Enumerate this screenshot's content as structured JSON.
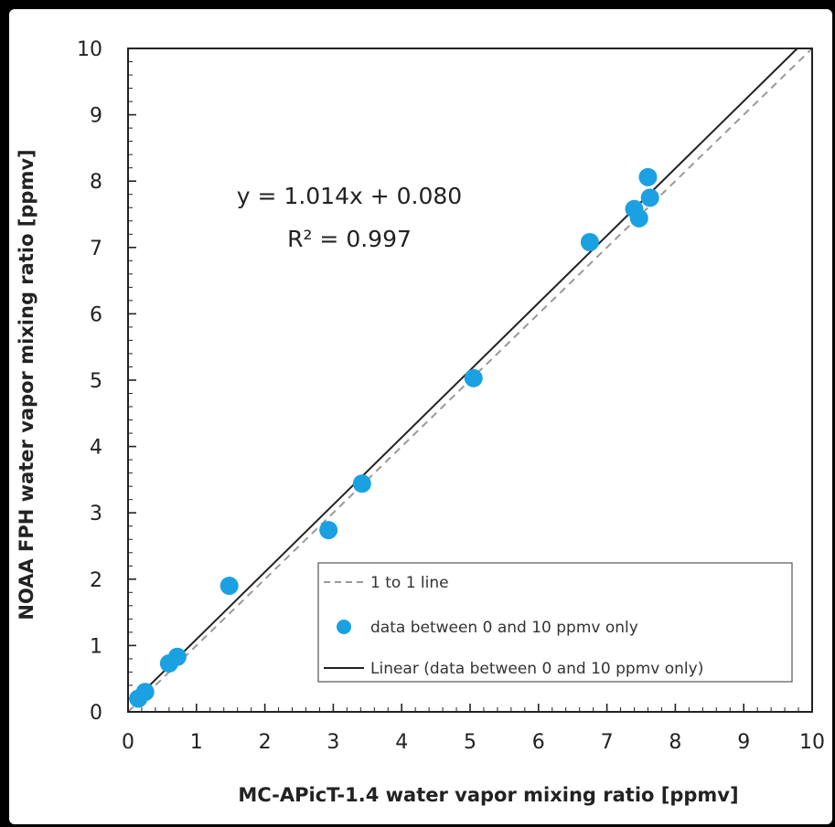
{
  "chart_data": {
    "type": "scatter",
    "xlabel": "MC-APicT-1.4  water vapor mixing ratio [ppmv]",
    "ylabel": "NOAA FPH  water vapor mixing ratio  [ppmv]",
    "xlim": [
      0,
      10
    ],
    "ylim": [
      0,
      10
    ],
    "x_ticks": [
      "0",
      "1",
      "2",
      "3",
      "4",
      "5",
      "6",
      "7",
      "8",
      "9",
      "10"
    ],
    "y_ticks": [
      "0",
      "1",
      "2",
      "3",
      "4",
      "5",
      "6",
      "7",
      "8",
      "9",
      "10"
    ],
    "grid": false,
    "legend_position": "bottom-right",
    "annotations": {
      "equation": "y = 1.014x + 0.080",
      "r_squared": "R² = 0.997"
    },
    "series": [
      {
        "name": "data between 0 and 10 ppmv only",
        "kind": "scatter",
        "color": "#1ba1e2",
        "x": [
          0.15,
          0.25,
          0.6,
          0.72,
          1.48,
          2.93,
          3.42,
          5.05,
          6.75,
          7.4,
          7.47,
          7.6,
          7.63
        ],
        "y": [
          0.2,
          0.3,
          0.73,
          0.83,
          1.9,
          2.74,
          3.44,
          5.03,
          7.08,
          7.58,
          7.44,
          8.06,
          7.75
        ]
      },
      {
        "name": "1 to 1 line",
        "kind": "line",
        "style": "dashed",
        "color": "#999999",
        "x": [
          0,
          10
        ],
        "y": [
          0,
          10
        ]
      },
      {
        "name": "Linear (data between 0 and 10 ppmv only)",
        "kind": "line",
        "style": "solid",
        "color": "#222222",
        "slope": 1.014,
        "intercept": 0.08
      }
    ]
  }
}
